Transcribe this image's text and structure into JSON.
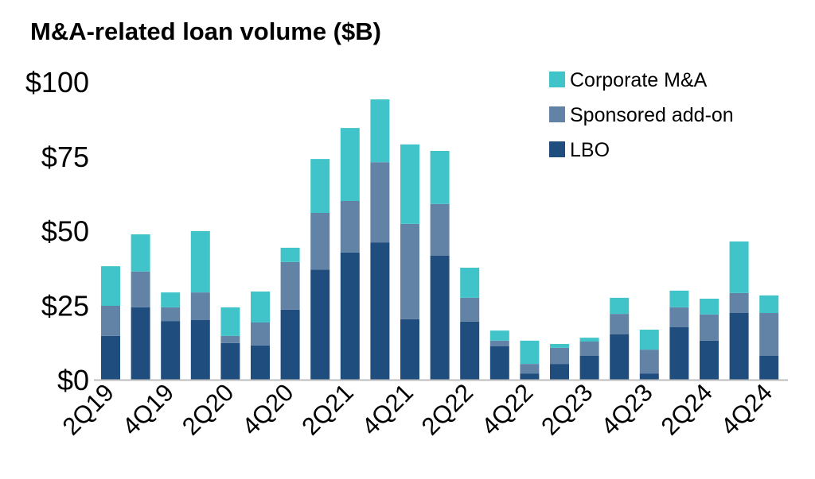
{
  "chart_data": {
    "type": "bar",
    "stacked": true,
    "title": "M&A-related loan volume ($B)",
    "xlabel": "",
    "ylabel": "",
    "ylim": [
      0,
      100
    ],
    "yticks": [
      0,
      25,
      50,
      75,
      100
    ],
    "ytick_labels": [
      "$0",
      "$25",
      "$50",
      "$75",
      "$100"
    ],
    "grid": false,
    "legend_position": "top-right",
    "categories": [
      "2Q19",
      "3Q19",
      "4Q19",
      "1Q20",
      "2Q20",
      "3Q20",
      "4Q20",
      "1Q21",
      "2Q21",
      "3Q21",
      "4Q21",
      "1Q22",
      "2Q22",
      "3Q22",
      "4Q22",
      "1Q23",
      "2Q23",
      "3Q23",
      "4Q23",
      "1Q24",
      "2Q24",
      "3Q24",
      "4Q24"
    ],
    "xtick_labels": [
      "2Q19",
      "4Q19",
      "2Q20",
      "4Q20",
      "2Q21",
      "4Q21",
      "2Q22",
      "4Q22",
      "2Q23",
      "4Q23",
      "2Q24",
      "4Q24"
    ],
    "series": [
      {
        "name": "LBO",
        "color": "#1f4e7e",
        "values": [
          14.7,
          24.3,
          19.7,
          20.0,
          12.3,
          11.5,
          23.5,
          37.0,
          42.7,
          46.1,
          20.3,
          41.6,
          19.5,
          11.2,
          2.1,
          5.3,
          8.0,
          15.2,
          2.1,
          17.6,
          13.1,
          22.4,
          8.0
        ]
      },
      {
        "name": "Sponsored add-on",
        "color": "#6283a6",
        "values": [
          10.1,
          12.0,
          4.6,
          9.3,
          2.4,
          7.7,
          16.0,
          19.0,
          17.3,
          26.9,
          32.0,
          17.4,
          8.0,
          1.9,
          3.2,
          5.4,
          4.8,
          6.9,
          8.0,
          6.7,
          8.8,
          6.7,
          14.4
        ]
      },
      {
        "name": "Corporate M&A",
        "color": "#41c4c9",
        "values": [
          13.3,
          12.5,
          5.0,
          20.6,
          9.6,
          10.4,
          4.8,
          18.1,
          24.5,
          21.1,
          26.7,
          17.8,
          10.1,
          3.4,
          7.8,
          1.3,
          1.3,
          5.4,
          6.7,
          5.6,
          5.3,
          17.3,
          5.9
        ]
      }
    ],
    "legend_order": [
      "Corporate M&A",
      "Sponsored add-on",
      "LBO"
    ]
  }
}
